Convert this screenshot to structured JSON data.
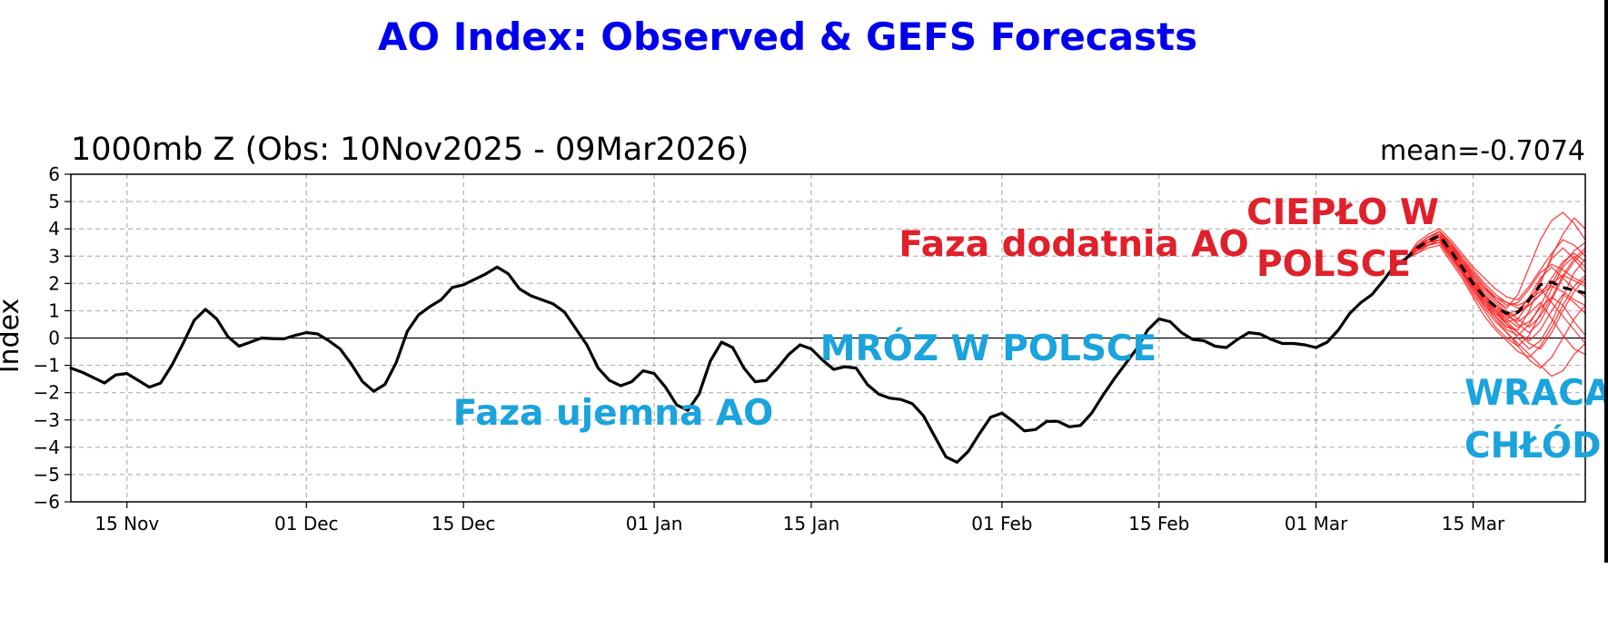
{
  "chart_data": {
    "type": "line",
    "title": "AO Index: Observed & GEFS Forecasts",
    "subtitle": "1000mb Z (Obs: 10Nov2025 - 09Mar2026)",
    "stat_label": "mean=-0.7074",
    "xlabel": "",
    "ylabel": "Index",
    "xlim": [
      "2025-11-10",
      "2026-03-25"
    ],
    "ylim": [
      -6,
      6
    ],
    "x_ticks": [
      "2025-11-15",
      "2025-12-01",
      "2025-12-15",
      "2026-01-01",
      "2026-01-15",
      "2026-02-01",
      "2026-02-15",
      "2026-03-01",
      "2026-03-15"
    ],
    "x_tick_labels": [
      "15 Nov",
      "01 Dec",
      "15 Dec",
      "01 Jan",
      "15 Jan",
      "01 Feb",
      "15 Feb",
      "01 Mar",
      "15 Mar"
    ],
    "y_ticks": [
      -6,
      -5,
      -4,
      -3,
      -2,
      -1,
      0,
      1,
      2,
      3,
      4,
      5,
      6
    ],
    "y_tick_labels": [
      "−6",
      "−5",
      "−4",
      "−3",
      "−2",
      "−1",
      "0",
      "1",
      "2",
      "3",
      "4",
      "5",
      "6"
    ],
    "grid": true,
    "colors": {
      "title": "#0000ee",
      "observed": "#000000",
      "forecast_mean": "#000000",
      "members": "#ff2222",
      "annotation_red": "#e0202a",
      "annotation_blue": "#1aa3dc",
      "grid": "#b0b0b0"
    },
    "series": [
      {
        "style": "solid",
        "x": [
          "2025-11-10",
          "2025-11-11",
          "2025-11-12",
          "2025-11-13",
          "2025-11-14",
          "2025-11-15",
          "2025-11-16",
          "2025-11-17",
          "2025-11-18",
          "2025-11-19",
          "2025-11-20",
          "2025-11-21",
          "2025-11-22",
          "2025-11-23",
          "2025-11-24",
          "2025-11-25",
          "2025-11-26",
          "2025-11-27",
          "2025-11-28",
          "2025-11-29",
          "2025-11-30",
          "2025-12-01",
          "2025-12-02",
          "2025-12-03",
          "2025-12-04",
          "2025-12-05",
          "2025-12-06",
          "2025-12-07",
          "2025-12-08",
          "2025-12-09",
          "2025-12-10",
          "2025-12-11",
          "2025-12-12",
          "2025-12-13",
          "2025-12-14",
          "2025-12-15",
          "2025-12-16",
          "2025-12-17",
          "2025-12-18",
          "2025-12-19",
          "2025-12-20",
          "2025-12-21",
          "2025-12-22",
          "2025-12-23",
          "2025-12-24",
          "2025-12-25",
          "2025-12-26",
          "2025-12-27",
          "2025-12-28",
          "2025-12-29",
          "2025-12-30",
          "2025-12-31",
          "2026-01-01",
          "2026-01-02",
          "2026-01-03",
          "2026-01-04",
          "2026-01-05",
          "2026-01-06",
          "2026-01-07",
          "2026-01-08",
          "2026-01-09",
          "2026-01-10",
          "2026-01-11",
          "2026-01-12",
          "2026-01-13",
          "2026-01-14",
          "2026-01-15",
          "2026-01-16",
          "2026-01-17",
          "2026-01-18",
          "2026-01-19",
          "2026-01-20",
          "2026-01-21",
          "2026-01-22",
          "2026-01-23",
          "2026-01-24",
          "2026-01-25",
          "2026-01-26",
          "2026-01-27",
          "2026-01-28",
          "2026-01-29",
          "2026-01-30",
          "2026-01-31",
          "2026-02-01",
          "2026-02-02",
          "2026-02-03",
          "2026-02-04",
          "2026-02-05",
          "2026-02-06",
          "2026-02-07",
          "2026-02-08",
          "2026-02-09",
          "2026-02-10",
          "2026-02-11",
          "2026-02-12",
          "2026-02-13",
          "2026-02-14",
          "2026-02-15",
          "2026-02-16",
          "2026-02-17",
          "2026-02-18",
          "2026-02-19",
          "2026-02-20",
          "2026-02-21",
          "2026-02-22",
          "2026-02-23",
          "2026-02-24",
          "2026-02-25",
          "2026-02-26",
          "2026-02-27",
          "2026-02-28",
          "2026-03-01",
          "2026-03-02",
          "2026-03-03",
          "2026-03-04",
          "2026-03-05",
          "2026-03-06",
          "2026-03-07",
          "2026-03-08",
          "2026-03-09"
        ],
        "values": [
          -1.1,
          -1.25,
          -1.45,
          -1.65,
          -1.35,
          -1.3,
          -1.55,
          -1.8,
          -1.65,
          -1.0,
          -0.2,
          0.65,
          1.05,
          0.7,
          0.05,
          -0.3,
          -0.15,
          0.0,
          -0.02,
          -0.03,
          0.1,
          0.2,
          0.15,
          -0.1,
          -0.4,
          -0.95,
          -1.6,
          -1.95,
          -1.7,
          -0.9,
          0.25,
          0.85,
          1.15,
          1.4,
          1.85,
          1.95,
          2.15,
          2.35,
          2.6,
          2.35,
          1.8,
          1.55,
          1.4,
          1.25,
          0.95,
          0.35,
          -0.25,
          -1.1,
          -1.55,
          -1.75,
          -1.6,
          -1.2,
          -1.3,
          -1.8,
          -2.45,
          -2.65,
          -2.05,
          -0.85,
          -0.15,
          -0.35,
          -1.1,
          -1.6,
          -1.55,
          -1.1,
          -0.6,
          -0.25,
          -0.4,
          -0.8,
          -1.15,
          -1.05,
          -1.1,
          -1.7,
          -2.05,
          -2.2,
          -2.25,
          -2.4,
          -2.85,
          -3.6,
          -4.35,
          -4.55,
          -4.15,
          -3.5,
          -2.9,
          -2.75,
          -3.05,
          -3.4,
          -3.35,
          -3.05,
          -3.05,
          -3.25,
          -3.2,
          -2.75,
          -2.1,
          -1.5,
          -0.95,
          -0.4,
          0.3,
          0.7,
          0.6,
          0.2,
          -0.05,
          -0.1,
          -0.3,
          -0.35,
          -0.05,
          0.2,
          0.15,
          -0.05,
          -0.2,
          -0.2,
          -0.25,
          -0.35,
          -0.15,
          0.3,
          0.9,
          1.3,
          1.6,
          2.1,
          2.65,
          2.9
        ]
      },
      {
        "style": "dashed",
        "x": [
          "2026-03-09",
          "2026-03-10",
          "2026-03-11",
          "2026-03-12",
          "2026-03-13",
          "2026-03-14",
          "2026-03-15",
          "2026-03-16",
          "2026-03-17",
          "2026-03-18",
          "2026-03-19",
          "2026-03-20",
          "2026-03-21",
          "2026-03-22",
          "2026-03-23",
          "2026-03-24",
          "2026-03-25"
        ],
        "values": [
          2.9,
          3.3,
          3.55,
          3.75,
          3.2,
          2.6,
          2.0,
          1.5,
          1.15,
          0.9,
          0.95,
          1.4,
          1.95,
          2.05,
          1.85,
          1.75,
          1.65
        ]
      }
    ],
    "ensemble_members": {
      "x": [
        "2026-03-09",
        "2026-03-10",
        "2026-03-11",
        "2026-03-12",
        "2026-03-13",
        "2026-03-14",
        "2026-03-15",
        "2026-03-16",
        "2026-03-17",
        "2026-03-18",
        "2026-03-19",
        "2026-03-20",
        "2026-03-21",
        "2026-03-22",
        "2026-03-23",
        "2026-03-24",
        "2026-03-25"
      ],
      "members": [
        [
          2.9,
          3.4,
          3.7,
          3.9,
          3.4,
          2.9,
          2.4,
          1.9,
          1.4,
          1.1,
          1.6,
          2.6,
          3.6,
          4.3,
          4.6,
          4.2,
          3.6
        ],
        [
          2.9,
          3.2,
          3.5,
          3.6,
          3.1,
          2.5,
          1.8,
          1.2,
          0.8,
          0.4,
          0.3,
          1.0,
          2.0,
          3.0,
          3.8,
          4.4,
          4.0
        ],
        [
          2.9,
          3.3,
          3.6,
          3.8,
          3.3,
          2.7,
          2.2,
          1.7,
          1.3,
          0.9,
          0.5,
          0.2,
          0.6,
          1.4,
          2.2,
          2.8,
          3.2
        ],
        [
          2.9,
          3.1,
          3.4,
          3.5,
          2.9,
          2.3,
          1.6,
          1.0,
          0.4,
          0.0,
          -0.3,
          0.1,
          0.9,
          1.8,
          2.6,
          3.0,
          2.6
        ],
        [
          2.9,
          3.4,
          3.6,
          3.9,
          3.5,
          2.9,
          2.3,
          1.8,
          1.5,
          1.3,
          1.2,
          1.4,
          1.7,
          2.0,
          2.3,
          2.1,
          1.9
        ],
        [
          2.9,
          3.2,
          3.5,
          3.7,
          3.1,
          2.5,
          1.9,
          1.4,
          1.0,
          0.6,
          0.2,
          -0.2,
          -0.4,
          0.2,
          1.0,
          1.7,
          2.2
        ],
        [
          2.9,
          3.5,
          3.8,
          4.0,
          3.6,
          3.1,
          2.6,
          2.2,
          1.8,
          1.5,
          1.4,
          1.9,
          2.5,
          3.1,
          3.6,
          3.4,
          3.0
        ],
        [
          2.9,
          3.3,
          3.4,
          3.6,
          3.0,
          2.4,
          1.7,
          1.1,
          0.6,
          0.2,
          -0.2,
          -0.6,
          -1.0,
          -1.4,
          -1.2,
          -0.6,
          -0.2
        ],
        [
          2.9,
          3.2,
          3.6,
          3.8,
          3.2,
          2.6,
          2.0,
          1.5,
          1.2,
          0.8,
          0.9,
          1.2,
          1.6,
          1.9,
          1.7,
          1.4,
          1.2
        ],
        [
          2.9,
          3.3,
          3.5,
          3.7,
          3.3,
          2.8,
          2.2,
          1.6,
          1.1,
          0.7,
          0.4,
          0.6,
          1.1,
          1.5,
          1.2,
          0.6,
          0.1
        ],
        [
          2.9,
          3.4,
          3.7,
          3.9,
          3.4,
          2.8,
          2.1,
          1.5,
          1.0,
          0.5,
          0.0,
          -0.4,
          -0.1,
          0.6,
          1.5,
          2.4,
          2.9
        ],
        [
          2.9,
          3.2,
          3.4,
          3.6,
          3.0,
          2.4,
          1.8,
          1.3,
          0.9,
          0.6,
          0.7,
          1.3,
          2.1,
          2.9,
          3.3,
          2.9,
          2.4
        ],
        [
          2.9,
          3.3,
          3.6,
          3.8,
          3.2,
          2.7,
          2.1,
          1.6,
          1.2,
          0.9,
          1.0,
          1.5,
          1.8,
          1.3,
          0.8,
          0.3,
          -0.2
        ],
        [
          2.9,
          3.1,
          3.3,
          3.4,
          2.8,
          2.2,
          1.5,
          0.8,
          0.3,
          -0.1,
          -0.5,
          -0.7,
          -0.3,
          0.4,
          1.2,
          1.9,
          2.3
        ],
        [
          2.9,
          3.4,
          3.6,
          3.8,
          3.4,
          2.9,
          2.4,
          1.9,
          1.5,
          1.2,
          1.3,
          1.8,
          2.4,
          2.7,
          2.5,
          2.2,
          2.0
        ],
        [
          2.9,
          3.3,
          3.5,
          3.7,
          3.1,
          2.5,
          1.9,
          1.3,
          0.8,
          0.3,
          0.1,
          0.5,
          1.2,
          2.0,
          2.7,
          3.2,
          3.5
        ],
        [
          2.9,
          3.2,
          3.5,
          3.6,
          3.0,
          2.4,
          1.9,
          1.5,
          1.1,
          0.8,
          0.6,
          0.9,
          1.3,
          0.7,
          0.1,
          -0.4,
          -0.6
        ],
        [
          2.9,
          3.4,
          3.7,
          3.9,
          3.5,
          3.0,
          2.5,
          2.0,
          1.6,
          1.3,
          1.1,
          1.2,
          1.6,
          2.2,
          2.8,
          3.1,
          2.8
        ],
        [
          2.9,
          3.3,
          3.6,
          3.7,
          3.2,
          2.6,
          2.0,
          1.4,
          0.9,
          0.5,
          0.2,
          -0.1,
          0.3,
          1.0,
          1.6,
          1.3,
          0.9
        ],
        [
          2.9,
          3.2,
          3.4,
          3.5,
          3.0,
          2.5,
          1.9,
          1.4,
          1.0,
          0.7,
          0.9,
          1.5,
          2.2,
          2.6,
          2.2,
          1.8,
          1.5
        ],
        [
          2.9,
          3.3,
          3.5,
          3.8,
          3.3,
          2.8,
          2.3,
          1.8,
          1.4,
          1.0,
          0.7,
          0.4,
          0.8,
          1.5,
          2.3,
          2.9,
          3.3
        ],
        [
          2.9,
          3.2,
          3.5,
          3.6,
          3.1,
          2.5,
          1.8,
          1.2,
          0.7,
          0.2,
          -0.3,
          -0.8,
          -1.1,
          -0.7,
          0.0,
          0.7,
          1.2
        ]
      ]
    },
    "annotations": [
      {
        "text": "Faza dodatnia AO",
        "color": "red"
      },
      {
        "text": "CIEPŁO W",
        "color": "red"
      },
      {
        "text": "POLSCE",
        "color": "red"
      },
      {
        "text": "MRÓZ W POLSCE",
        "color": "blue"
      },
      {
        "text": "Faza ujemna AO",
        "color": "blue"
      },
      {
        "text": "WRACA",
        "color": "blue"
      },
      {
        "text": "CHŁÓD",
        "color": "blue"
      }
    ]
  }
}
